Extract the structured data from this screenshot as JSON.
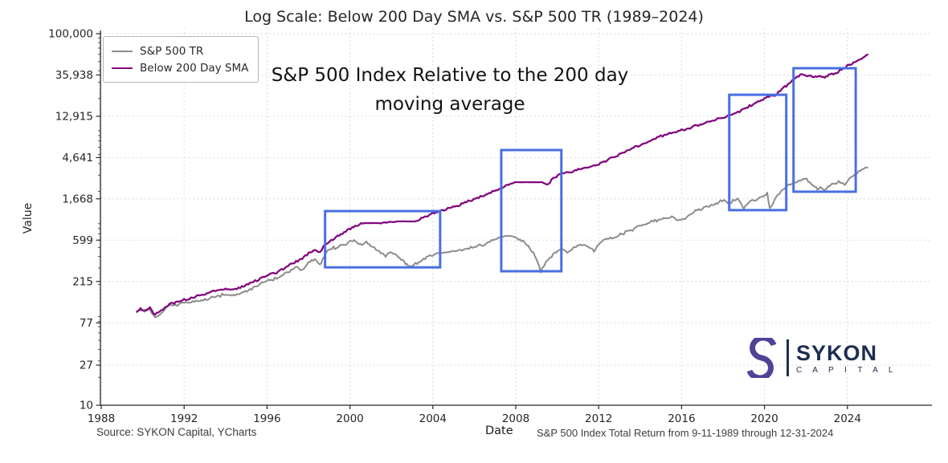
{
  "title": "Log Scale: Below 200 Day SMA vs. S&P 500 TR (1989–2024)",
  "annotation": {
    "line1": "S&P 500 Index Relative to the 200 day",
    "line2": "moving average"
  },
  "legend": [
    {
      "label": "S&P 500 TR",
      "color": "#8c8c8c"
    },
    {
      "label": "Below 200 Day SMA",
      "color": "#82087e"
    }
  ],
  "footer": {
    "source": "Source: SYKON Capital, YCharts",
    "xlabel": "Date",
    "note": "S&P 500 Index Total Return from 9-11-1989 through 12-31-2024"
  },
  "logo": {
    "name": "SYKON",
    "subtitle": "C A P I T A L",
    "mark_color": "#4f4398",
    "text_color": "#1d2e52"
  },
  "chart_data": {
    "type": "line",
    "title": "Log Scale: Below 200 Day SMA vs. S&P 500 TR (1989–2024)",
    "x_axis": {
      "label": "Date",
      "ticks": [
        1988,
        1992,
        1996,
        2000,
        2004,
        2008,
        2012,
        2016,
        2020,
        2024
      ],
      "range": [
        1988,
        2028
      ]
    },
    "y_axis": {
      "label": "Value",
      "scale": "log",
      "range": [
        10,
        100000
      ],
      "ticks": [
        10,
        27,
        77,
        215,
        599,
        1668,
        4641,
        12915,
        35938,
        100000
      ],
      "tick_labels": [
        "10",
        "27",
        "77",
        "215",
        "599",
        "1,668",
        "4,641",
        "12,915",
        "35,938",
        "100,000"
      ]
    },
    "grid": true,
    "legend_position": "upper-left",
    "highlight_color": "#4a6fe3",
    "highlight_boxes": [
      {
        "year_start": 1998.8,
        "year_end": 2004.35,
        "value_low": 305,
        "value_high": 1230
      },
      {
        "year_start": 2007.3,
        "year_end": 2010.2,
        "value_low": 277,
        "value_high": 5590
      },
      {
        "year_start": 2018.3,
        "year_end": 2021.05,
        "value_low": 1260,
        "value_high": 22000
      },
      {
        "year_start": 2021.4,
        "year_end": 2024.4,
        "value_low": 1990,
        "value_high": 42500
      }
    ],
    "series": [
      {
        "name": "S&P 500 TR",
        "color": "#8c8c8c",
        "points": [
          [
            1989.72,
            100
          ],
          [
            1989.9,
            107
          ],
          [
            1990.1,
            102
          ],
          [
            1990.35,
            108
          ],
          [
            1990.6,
            86
          ],
          [
            1990.9,
            97
          ],
          [
            1991.2,
            116
          ],
          [
            1991.6,
            120
          ],
          [
            1992,
            125
          ],
          [
            1992.5,
            130
          ],
          [
            1993,
            138
          ],
          [
            1993.5,
            147
          ],
          [
            1994,
            156
          ],
          [
            1994.3,
            150
          ],
          [
            1994.7,
            159
          ],
          [
            1995.1,
            174
          ],
          [
            1995.5,
            190
          ],
          [
            1995.9,
            214
          ],
          [
            1996.3,
            227
          ],
          [
            1996.7,
            247
          ],
          [
            1997.1,
            277
          ],
          [
            1997.4,
            306
          ],
          [
            1997.7,
            283
          ],
          [
            1998,
            345
          ],
          [
            1998.3,
            381
          ],
          [
            1998.55,
            325
          ],
          [
            1998.9,
            465
          ],
          [
            1999.2,
            493
          ],
          [
            1999.6,
            524
          ],
          [
            2000,
            568
          ],
          [
            2000.2,
            590
          ],
          [
            2000.5,
            534
          ],
          [
            2000.8,
            568
          ],
          [
            2001.1,
            503
          ],
          [
            2001.4,
            456
          ],
          [
            2001.72,
            396
          ],
          [
            2002,
            456
          ],
          [
            2002.4,
            381
          ],
          [
            2002.75,
            325
          ],
          [
            2003,
            313
          ],
          [
            2003.25,
            338
          ],
          [
            2003.7,
            389
          ],
          [
            2004.1,
            421
          ],
          [
            2004.5,
            438
          ],
          [
            2005,
            456
          ],
          [
            2005.5,
            474
          ],
          [
            2006,
            514
          ],
          [
            2006.5,
            545
          ],
          [
            2007,
            600
          ],
          [
            2007.4,
            652
          ],
          [
            2007.8,
            679
          ],
          [
            2008.2,
            600
          ],
          [
            2008.6,
            524
          ],
          [
            2008.85,
            438
          ],
          [
            2009.05,
            345
          ],
          [
            2009.2,
            277
          ],
          [
            2009.45,
            345
          ],
          [
            2009.8,
            421
          ],
          [
            2010.2,
            484
          ],
          [
            2010.55,
            447
          ],
          [
            2010.9,
            514
          ],
          [
            2011.2,
            545
          ],
          [
            2011.55,
            503
          ],
          [
            2011.78,
            456
          ],
          [
            2012,
            534
          ],
          [
            2012.35,
            615
          ],
          [
            2012.8,
            640
          ],
          [
            2013.3,
            737
          ],
          [
            2013.8,
            811
          ],
          [
            2014.3,
            896
          ],
          [
            2014.8,
            971
          ],
          [
            2015.3,
            1050
          ],
          [
            2015.6,
            1090
          ],
          [
            2015.75,
            991
          ],
          [
            2016.1,
            1010
          ],
          [
            2016.5,
            1180
          ],
          [
            2017,
            1310
          ],
          [
            2017.5,
            1420
          ],
          [
            2018.05,
            1630
          ],
          [
            2018.25,
            1500
          ],
          [
            2018.7,
            1690
          ],
          [
            2019,
            1360
          ],
          [
            2019.3,
            1560
          ],
          [
            2019.7,
            1690
          ],
          [
            2020,
            1800
          ],
          [
            2020.13,
            1870
          ],
          [
            2020.25,
            1280
          ],
          [
            2020.5,
            1660
          ],
          [
            2020.8,
            1990
          ],
          [
            2021.1,
            2330
          ],
          [
            2021.5,
            2520
          ],
          [
            2021.95,
            2790
          ],
          [
            2022.2,
            2520
          ],
          [
            2022.55,
            2070
          ],
          [
            2022.7,
            2240
          ],
          [
            2022.9,
            2070
          ],
          [
            2023.15,
            2320
          ],
          [
            2023.45,
            2480
          ],
          [
            2023.65,
            2570
          ],
          [
            2023.87,
            2380
          ],
          [
            2024.1,
            2790
          ],
          [
            2024.4,
            3080
          ],
          [
            2024.7,
            3400
          ],
          [
            2024.97,
            3610
          ]
        ]
      },
      {
        "name": "Below 200 Day SMA",
        "color": "#82087e",
        "points": [
          [
            1989.72,
            102
          ],
          [
            1989.9,
            108
          ],
          [
            1990.1,
            104
          ],
          [
            1990.35,
            111
          ],
          [
            1990.6,
            95
          ],
          [
            1990.9,
            104
          ],
          [
            1991.2,
            120
          ],
          [
            1991.6,
            128
          ],
          [
            1992,
            136
          ],
          [
            1992.5,
            146
          ],
          [
            1993,
            157
          ],
          [
            1993.5,
            171
          ],
          [
            1994,
            181
          ],
          [
            1994.3,
            174
          ],
          [
            1994.7,
            185
          ],
          [
            1995.1,
            204
          ],
          [
            1995.5,
            218
          ],
          [
            1995.9,
            247
          ],
          [
            1996.3,
            262
          ],
          [
            1996.7,
            283
          ],
          [
            1997.1,
            325
          ],
          [
            1997.4,
            352
          ],
          [
            1997.7,
            381
          ],
          [
            1998,
            431
          ],
          [
            1998.3,
            465
          ],
          [
            1998.55,
            438
          ],
          [
            1998.8,
            534
          ],
          [
            1999.1,
            590
          ],
          [
            1999.4,
            665
          ],
          [
            1999.8,
            739
          ],
          [
            2000.1,
            816
          ],
          [
            2000.45,
            879
          ],
          [
            2000.7,
            914
          ],
          [
            2001.5,
            914
          ],
          [
            2002.3,
            953
          ],
          [
            2003.2,
            953
          ],
          [
            2003.6,
            1070
          ],
          [
            2004,
            1160
          ],
          [
            2004.35,
            1230
          ],
          [
            2004.8,
            1330
          ],
          [
            2005.3,
            1440
          ],
          [
            2005.8,
            1600
          ],
          [
            2006.3,
            1760
          ],
          [
            2006.8,
            1950
          ],
          [
            2007.2,
            2140
          ],
          [
            2007.6,
            2330
          ],
          [
            2007.95,
            2520
          ],
          [
            2009.35,
            2520
          ],
          [
            2009.5,
            2380
          ],
          [
            2009.8,
            2720
          ],
          [
            2010.2,
            3140
          ],
          [
            2010.7,
            3270
          ],
          [
            2011.1,
            3460
          ],
          [
            2011.6,
            3700
          ],
          [
            2012,
            3990
          ],
          [
            2012.5,
            4420
          ],
          [
            2013,
            4990
          ],
          [
            2013.5,
            5620
          ],
          [
            2014,
            6340
          ],
          [
            2014.5,
            7000
          ],
          [
            2015,
            7900
          ],
          [
            2015.5,
            8560
          ],
          [
            2016,
            9100
          ],
          [
            2016.4,
            9650
          ],
          [
            2016.9,
            10500
          ],
          [
            2017.4,
            11400
          ],
          [
            2017.9,
            12400
          ],
          [
            2018.3,
            13100
          ],
          [
            2018.8,
            14500
          ],
          [
            2019.2,
            16300
          ],
          [
            2019.6,
            18000
          ],
          [
            2020,
            20300
          ],
          [
            2020.35,
            21200
          ],
          [
            2020.6,
            22500
          ],
          [
            2020.9,
            25800
          ],
          [
            2021.2,
            29700
          ],
          [
            2021.5,
            33400
          ],
          [
            2021.8,
            37000
          ],
          [
            2022.05,
            35600
          ],
          [
            2022.3,
            34100
          ],
          [
            2022.6,
            34800
          ],
          [
            2022.9,
            34100
          ],
          [
            2023.1,
            36200
          ],
          [
            2023.4,
            37800
          ],
          [
            2023.7,
            40800
          ],
          [
            2024,
            45100
          ],
          [
            2024.3,
            48900
          ],
          [
            2024.6,
            52900
          ],
          [
            2024.8,
            56100
          ],
          [
            2024.97,
            59600
          ]
        ]
      }
    ]
  }
}
